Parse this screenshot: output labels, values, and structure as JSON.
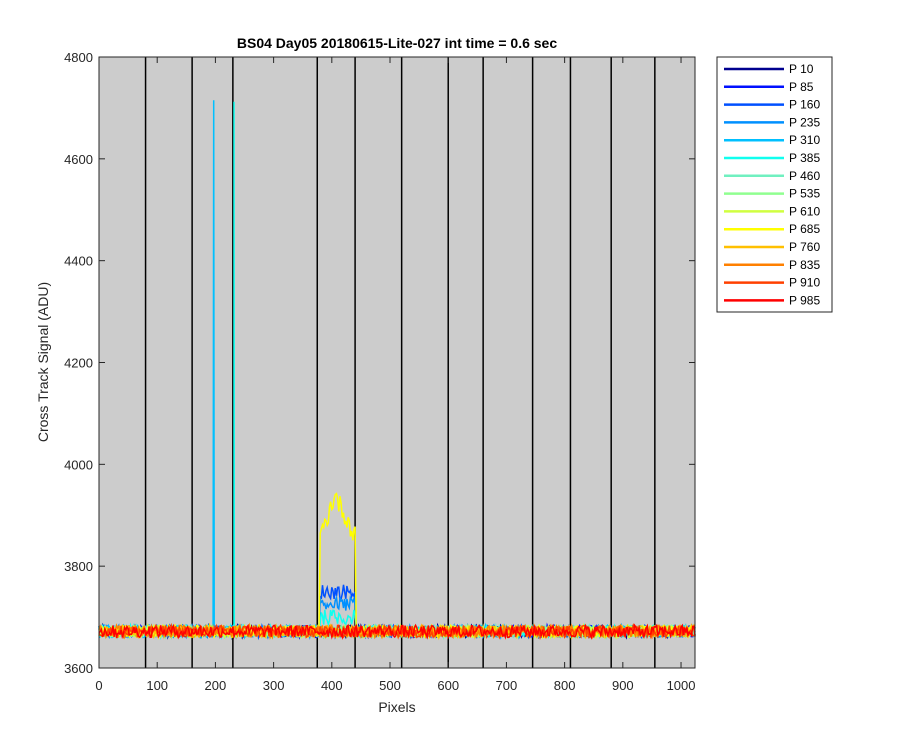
{
  "chart_data": {
    "type": "line",
    "title": "BS04 Day05 20180615-Lite-027 int time = 0.6 sec",
    "xlabel": "Pixels",
    "ylabel": "Cross Track Signal (ADU)",
    "xlim": [
      0,
      1024
    ],
    "ylim": [
      3600,
      4800
    ],
    "xticks": [
      0,
      100,
      200,
      300,
      400,
      500,
      600,
      700,
      800,
      900,
      1000
    ],
    "yticks": [
      3600,
      3800,
      4000,
      4200,
      4400,
      4600,
      4800
    ],
    "background": "#cccccc",
    "grid": false,
    "legend_position": "outside-right",
    "vertical_lines_x": [
      80,
      160,
      230,
      375,
      440,
      520,
      600,
      660,
      745,
      810,
      880,
      955
    ],
    "baseline_level": 3672,
    "noise_amplitude": 12,
    "spikes": [
      {
        "x": 197,
        "peak": 4715,
        "series_index": 4
      },
      {
        "x": 232,
        "peak": 4712,
        "series_index": 5
      }
    ],
    "plateau_region": {
      "x_start": 380,
      "x_end": 440,
      "series_levels": [
        {
          "series_index": 9,
          "start_level": 3855,
          "peak_x": 405,
          "peak": 3940,
          "end_level": 3860
        },
        {
          "series_index": 2,
          "level": 3750
        },
        {
          "series_index": 3,
          "level": 3725
        },
        {
          "series_index": 5,
          "level": 3700
        }
      ]
    },
    "series": [
      {
        "name": "P 10",
        "color": "#00008f"
      },
      {
        "name": "P 85",
        "color": "#0010ff"
      },
      {
        "name": "P 160",
        "color": "#0050ff"
      },
      {
        "name": "P 235",
        "color": "#0090ff"
      },
      {
        "name": "P 310",
        "color": "#00c0ff"
      },
      {
        "name": "P 385",
        "color": "#10ffef"
      },
      {
        "name": "P 460",
        "color": "#70f0c0"
      },
      {
        "name": "P 535",
        "color": "#90ff90"
      },
      {
        "name": "P 610",
        "color": "#d0ff40"
      },
      {
        "name": "P 685",
        "color": "#ffff00"
      },
      {
        "name": "P 760",
        "color": "#ffc000"
      },
      {
        "name": "P 835",
        "color": "#ff8000"
      },
      {
        "name": "P 910",
        "color": "#ff4000"
      },
      {
        "name": "P 985",
        "color": "#ff0000"
      }
    ]
  }
}
